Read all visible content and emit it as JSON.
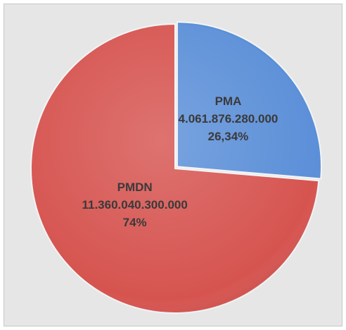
{
  "chart_data": {
    "type": "pie",
    "categories": [
      "PMA",
      "PMDN"
    ],
    "amounts": [
      4061876280000,
      11360040300000
    ],
    "amount_labels": [
      "4.061.876.280.000",
      "11.360.040.300.000"
    ],
    "values": [
      26.34,
      74
    ],
    "value_labels": [
      "26,34%",
      "74%"
    ],
    "colors": [
      "#5b8fd8",
      "#d65450"
    ]
  }
}
